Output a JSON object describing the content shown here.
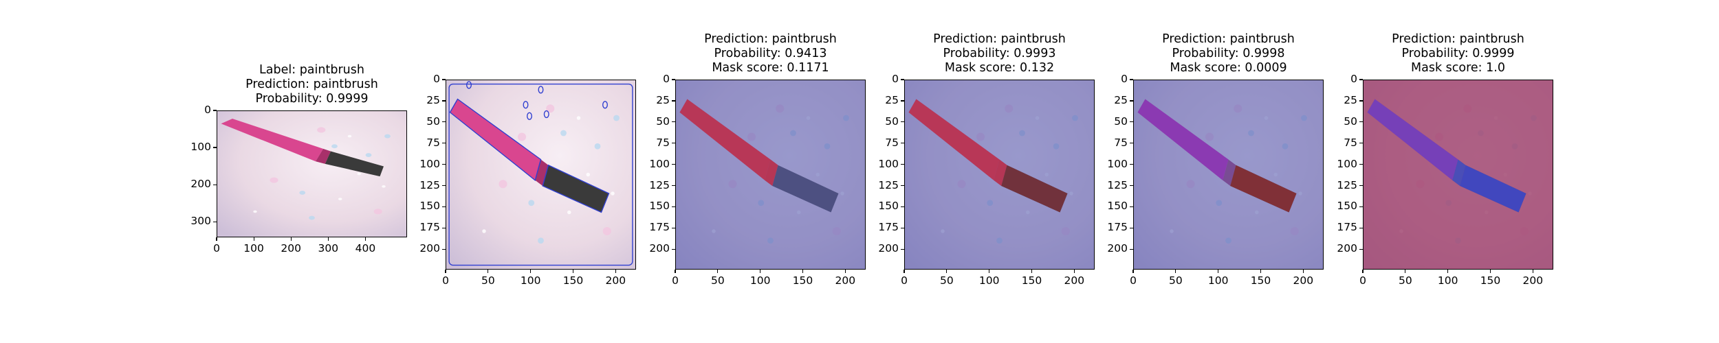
{
  "panels": [
    {
      "id": "original",
      "title_lines": [
        "Label: paintbrush",
        "Prediction: paintbrush",
        "Probability: 0.9999"
      ],
      "image": "photo of pink paintbrush with black bristles on glitter background",
      "x_ticks": [
        "0",
        "100",
        "200",
        "300",
        "400"
      ],
      "y_ticks": [
        "0",
        "100",
        "200",
        "300"
      ],
      "x_range": [
        0,
        512
      ],
      "y_range": [
        0,
        342
      ],
      "overlay": "none"
    },
    {
      "id": "contours",
      "title_lines": [],
      "image": "resized paintbrush photo with blue contour outlines",
      "x_ticks": [
        "0",
        "50",
        "100",
        "150",
        "200"
      ],
      "y_ticks": [
        "0",
        "25",
        "50",
        "75",
        "100",
        "125",
        "150",
        "175",
        "200"
      ],
      "x_range": [
        0,
        224
      ],
      "y_range": [
        0,
        224
      ],
      "overlay": "contours"
    },
    {
      "id": "mask-1",
      "title_lines": [
        "Prediction: paintbrush",
        "Probability: 0.9413",
        "Mask score: 0.1171"
      ],
      "image": "paintbrush with handle highlighted red over blue background",
      "x_ticks": [
        "0",
        "50",
        "100",
        "150",
        "200"
      ],
      "y_ticks": [
        "0",
        "25",
        "50",
        "75",
        "100",
        "125",
        "150",
        "175",
        "200"
      ],
      "x_range": [
        0,
        224
      ],
      "y_range": [
        0,
        224
      ],
      "overlay": "handle"
    },
    {
      "id": "mask-2",
      "title_lines": [
        "Prediction: paintbrush",
        "Probability: 0.9993",
        "Mask score: 0.132"
      ],
      "image": "paintbrush with whole brush highlighted red over blue background",
      "x_ticks": [
        "0",
        "50",
        "100",
        "150",
        "200"
      ],
      "y_ticks": [
        "0",
        "25",
        "50",
        "75",
        "100",
        "125",
        "150",
        "175",
        "200"
      ],
      "x_range": [
        0,
        224
      ],
      "y_range": [
        0,
        224
      ],
      "overlay": "brush"
    },
    {
      "id": "mask-3",
      "title_lines": [
        "Prediction: paintbrush",
        "Probability: 0.9998",
        "Mask score: 0.0009"
      ],
      "image": "paintbrush with bristles highlighted red, handle purple, background blue",
      "x_ticks": [
        "0",
        "50",
        "100",
        "150",
        "200"
      ],
      "y_ticks": [
        "0",
        "25",
        "50",
        "75",
        "100",
        "125",
        "150",
        "175",
        "200"
      ],
      "x_range": [
        0,
        224
      ],
      "y_range": [
        0,
        224
      ],
      "overlay": "bristles"
    },
    {
      "id": "mask-4",
      "title_lines": [
        "Prediction: paintbrush",
        "Probability: 0.9999",
        "Mask score: 1.0"
      ],
      "image": "paintbrush with background highlighted red, brush blue",
      "x_ticks": [
        "0",
        "50",
        "100",
        "150",
        "200"
      ],
      "y_ticks": [
        "0",
        "25",
        "50",
        "75",
        "100",
        "125",
        "150",
        "175",
        "200"
      ],
      "x_range": [
        0,
        224
      ],
      "y_range": [
        0,
        224
      ],
      "overlay": "background"
    }
  ],
  "colors": {
    "handle_pink": "#d9468f",
    "bristle_dark": "#3a3a3a",
    "glitter_bg": "#ead9e4",
    "mask_red": "#c0334a",
    "mask_blue": "#5a5fb0",
    "contour_blue": "#2f3fd0"
  }
}
